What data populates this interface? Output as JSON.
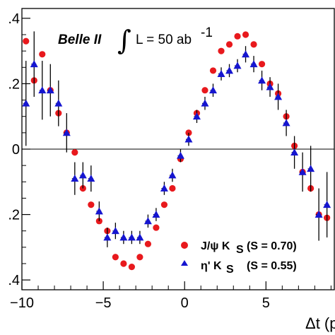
{
  "chart_data": {
    "type": "scatter",
    "experiment": "Belle II",
    "luminosity": "L = 50 ab",
    "luminosity_exp": "-1",
    "integral_symbol": "∫",
    "xlabel_visible": "Δt (p",
    "xlim": [
      -10,
      9.2
    ],
    "ylim": [
      -0.43,
      0.43
    ],
    "xticks": [
      -10,
      -5,
      0,
      5
    ],
    "xtick_labels": [
      "−10",
      "−5",
      "0",
      "5"
    ],
    "yticks": [
      0.4,
      0.2,
      0,
      -0.2,
      -0.4
    ],
    "ytick_labels": [
      ".4",
      ".2",
      "0",
      ".2",
      ".4"
    ],
    "zero_line": true,
    "legend_position": "bottom-right",
    "series": [
      {
        "name": "J/ψ K",
        "name_sub": "S",
        "name_stat": "(S = 0.70)",
        "marker": "circle",
        "color": "#e8191d",
        "points": [
          {
            "x": -9.75,
            "y": 0.33,
            "err": 0.0
          },
          {
            "x": -9.25,
            "y": 0.21,
            "err": 0.0
          },
          {
            "x": -8.75,
            "y": 0.29,
            "err": 0.0
          },
          {
            "x": -8.25,
            "y": 0.18,
            "err": 0.0
          },
          {
            "x": -7.75,
            "y": 0.11,
            "err": 0.0
          },
          {
            "x": -7.25,
            "y": 0.05,
            "err": 0.0
          },
          {
            "x": -6.75,
            "y": -0.01,
            "err": 0.0
          },
          {
            "x": -6.25,
            "y": -0.12,
            "err": 0.0
          },
          {
            "x": -5.75,
            "y": -0.17,
            "err": 0.0
          },
          {
            "x": -5.25,
            "y": -0.22,
            "err": 0.0
          },
          {
            "x": -4.75,
            "y": -0.25,
            "err": 0.0
          },
          {
            "x": -4.25,
            "y": -0.33,
            "err": 0.0
          },
          {
            "x": -3.75,
            "y": -0.35,
            "err": 0.0
          },
          {
            "x": -3.25,
            "y": -0.36,
            "err": 0.0
          },
          {
            "x": -2.75,
            "y": -0.33,
            "err": 0.0
          },
          {
            "x": -2.25,
            "y": -0.29,
            "err": 0.0
          },
          {
            "x": -1.75,
            "y": -0.24,
            "err": 0.0
          },
          {
            "x": -1.25,
            "y": -0.17,
            "err": 0.0
          },
          {
            "x": -0.75,
            "y": -0.12,
            "err": 0.0
          },
          {
            "x": -0.25,
            "y": -0.03,
            "err": 0.0
          },
          {
            "x": 0.25,
            "y": 0.05,
            "err": 0.0
          },
          {
            "x": 0.75,
            "y": 0.11,
            "err": 0.0
          },
          {
            "x": 1.25,
            "y": 0.18,
            "err": 0.0
          },
          {
            "x": 1.75,
            "y": 0.24,
            "err": 0.0
          },
          {
            "x": 2.25,
            "y": 0.3,
            "err": 0.0
          },
          {
            "x": 2.75,
            "y": 0.32,
            "err": 0.0
          },
          {
            "x": 3.25,
            "y": 0.345,
            "err": 0.0
          },
          {
            "x": 3.75,
            "y": 0.35,
            "err": 0.0
          },
          {
            "x": 4.25,
            "y": 0.32,
            "err": 0.0
          },
          {
            "x": 4.75,
            "y": 0.26,
            "err": 0.0
          },
          {
            "x": 5.25,
            "y": 0.2,
            "err": 0.0
          },
          {
            "x": 5.75,
            "y": 0.17,
            "err": 0.0
          },
          {
            "x": 6.25,
            "y": 0.1,
            "err": 0.0
          },
          {
            "x": 6.75,
            "y": 0.01,
            "err": 0.0
          },
          {
            "x": 7.25,
            "y": -0.07,
            "err": 0.0
          },
          {
            "x": 7.75,
            "y": -0.12,
            "err": 0.0
          },
          {
            "x": 8.25,
            "y": -0.2,
            "err": 0.0
          },
          {
            "x": 8.75,
            "y": -0.21,
            "err": 0.0
          }
        ]
      },
      {
        "name": "η' K",
        "name_sub": "S",
        "name_stat": "(S = 0.55)",
        "marker": "triangle",
        "color": "#1515d0",
        "points": [
          {
            "x": -9.75,
            "y": 0.14,
            "err": 0.13
          },
          {
            "x": -9.25,
            "y": 0.26,
            "err": 0.1
          },
          {
            "x": -8.75,
            "y": 0.18,
            "err": 0.09
          },
          {
            "x": -8.25,
            "y": 0.18,
            "err": 0.08
          },
          {
            "x": -7.75,
            "y": 0.14,
            "err": 0.07
          },
          {
            "x": -7.25,
            "y": 0.05,
            "err": 0.06
          },
          {
            "x": -6.75,
            "y": -0.09,
            "err": 0.05
          },
          {
            "x": -6.25,
            "y": -0.08,
            "err": 0.04
          },
          {
            "x": -5.75,
            "y": -0.09,
            "err": 0.04
          },
          {
            "x": -5.25,
            "y": -0.19,
            "err": 0.03
          },
          {
            "x": -4.75,
            "y": -0.27,
            "err": 0.03
          },
          {
            "x": -4.25,
            "y": -0.25,
            "err": 0.025
          },
          {
            "x": -3.75,
            "y": -0.27,
            "err": 0.02
          },
          {
            "x": -3.25,
            "y": -0.27,
            "err": 0.02
          },
          {
            "x": -2.75,
            "y": -0.27,
            "err": 0.02
          },
          {
            "x": -2.25,
            "y": -0.22,
            "err": 0.02
          },
          {
            "x": -1.75,
            "y": -0.2,
            "err": 0.02
          },
          {
            "x": -1.25,
            "y": -0.12,
            "err": 0.02
          },
          {
            "x": -0.75,
            "y": -0.08,
            "err": 0.02
          },
          {
            "x": -0.25,
            "y": -0.02,
            "err": 0.02
          },
          {
            "x": 0.25,
            "y": 0.03,
            "err": 0.02
          },
          {
            "x": 0.75,
            "y": 0.1,
            "err": 0.02
          },
          {
            "x": 1.25,
            "y": 0.14,
            "err": 0.02
          },
          {
            "x": 1.75,
            "y": 0.18,
            "err": 0.02
          },
          {
            "x": 2.25,
            "y": 0.23,
            "err": 0.02
          },
          {
            "x": 2.75,
            "y": 0.24,
            "err": 0.02
          },
          {
            "x": 3.25,
            "y": 0.255,
            "err": 0.02
          },
          {
            "x": 3.75,
            "y": 0.29,
            "err": 0.025
          },
          {
            "x": 4.25,
            "y": 0.26,
            "err": 0.025
          },
          {
            "x": 4.75,
            "y": 0.21,
            "err": 0.03
          },
          {
            "x": 5.25,
            "y": 0.19,
            "err": 0.03
          },
          {
            "x": 5.75,
            "y": 0.16,
            "err": 0.04
          },
          {
            "x": 6.25,
            "y": 0.08,
            "err": 0.04
          },
          {
            "x": 6.75,
            "y": -0.01,
            "err": 0.05
          },
          {
            "x": 7.25,
            "y": -0.07,
            "err": 0.06
          },
          {
            "x": 7.75,
            "y": -0.06,
            "err": 0.07
          },
          {
            "x": 8.25,
            "y": -0.2,
            "err": 0.08
          },
          {
            "x": 8.75,
            "y": -0.17,
            "err": 0.1
          }
        ]
      }
    ]
  }
}
